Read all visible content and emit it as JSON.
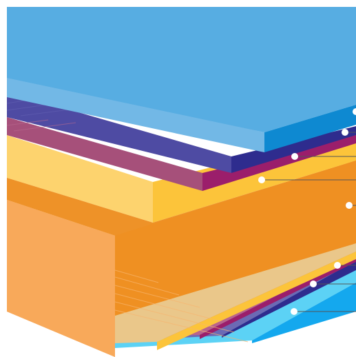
{
  "diagram": {
    "kind": "layered cross-section",
    "layers": [
      {
        "id": "top-layer",
        "colors": {
          "top": "#57ADE2",
          "front": "#72B8E6",
          "side": "#0E89D1"
        }
      },
      {
        "id": "indigo-layer",
        "colors": {
          "front": "#4E4BA3",
          "side": "#2E2C8E"
        }
      },
      {
        "id": "magenta-layer",
        "colors": {
          "front": "#A6507A",
          "side": "#9B1E6B"
        }
      },
      {
        "id": "yellow-layer",
        "colors": {
          "front": "#FDD36E",
          "side": "#FCC43A"
        }
      },
      {
        "id": "orange-core",
        "colors": {
          "top": "#EE9228",
          "front": "#F8A95A",
          "side": "#EF9022"
        }
      },
      {
        "id": "bottom-yellow-layer",
        "colors": {
          "front": "#EAC78A",
          "side": "#FCC43A"
        }
      },
      {
        "id": "bottom-magenta-layer",
        "colors": {
          "front": "#B9648C",
          "side": "#9B1E6B"
        }
      },
      {
        "id": "bottom-indigo-layer",
        "colors": {
          "front": "#6C6AB4",
          "side": "#2E2C8E"
        }
      },
      {
        "id": "bottom-blue-layer",
        "colors": {
          "front": "#5CD2F5",
          "side": "#14A8EE"
        }
      }
    ],
    "callout_count": 8,
    "callout_color": "#FFFFFF",
    "leader_color": "#555555"
  }
}
